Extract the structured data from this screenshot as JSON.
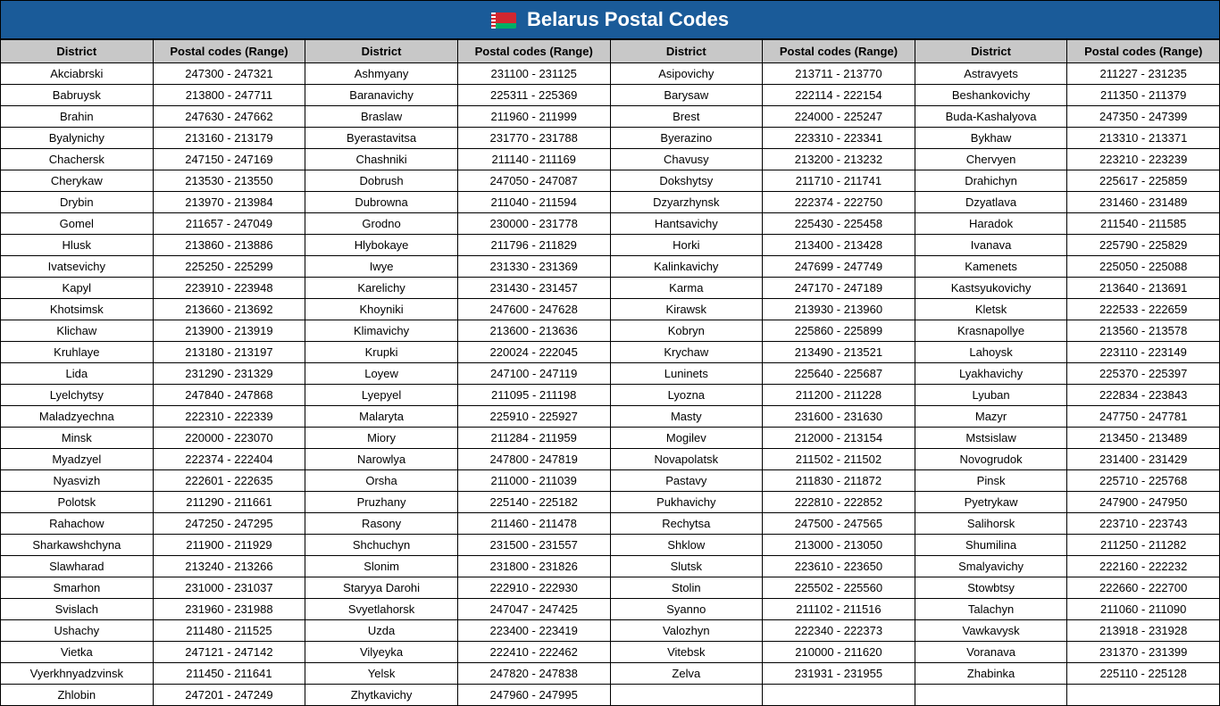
{
  "title": "Belarus Postal Codes",
  "colors": {
    "header_bg": "#1a5b99",
    "header_text": "#ffffff",
    "th_bg": "#c8c8c8",
    "border": "#000000",
    "row_bg": "#ffffff",
    "text": "#000000"
  },
  "typography": {
    "title_fontsize": 22,
    "title_weight": "bold",
    "th_fontsize": 13,
    "th_weight": "bold",
    "td_fontsize": 13,
    "font_family": "Arial"
  },
  "table": {
    "type": "table",
    "column_pairs": 4,
    "headers": [
      "District",
      "Postal codes (Range)"
    ],
    "col_widths_pct": [
      12.5,
      12.5,
      12.5,
      12.5,
      12.5,
      12.5,
      12.5,
      12.5
    ],
    "entries": [
      {
        "district": "Akciabrski",
        "range": "247300 - 247321"
      },
      {
        "district": "Ashmyany",
        "range": "231100 - 231125"
      },
      {
        "district": "Asipovichy",
        "range": "213711 - 213770"
      },
      {
        "district": "Astravyets",
        "range": "211227 - 231235"
      },
      {
        "district": "Babruysk",
        "range": "213800 - 247711"
      },
      {
        "district": "Baranavichy",
        "range": "225311 - 225369"
      },
      {
        "district": "Barysaw",
        "range": "222114 - 222154"
      },
      {
        "district": "Beshankovichy",
        "range": "211350 - 211379"
      },
      {
        "district": "Brahin",
        "range": "247630 - 247662"
      },
      {
        "district": "Braslaw",
        "range": "211960 - 211999"
      },
      {
        "district": "Brest",
        "range": "224000 - 225247"
      },
      {
        "district": "Buda-Kashalyova",
        "range": "247350 - 247399"
      },
      {
        "district": "Byalynichy",
        "range": "213160 - 213179"
      },
      {
        "district": "Byerastavitsa",
        "range": "231770 - 231788"
      },
      {
        "district": "Byerazino",
        "range": "223310 - 223341"
      },
      {
        "district": "Bykhaw",
        "range": "213310 - 213371"
      },
      {
        "district": "Chachersk",
        "range": "247150 - 247169"
      },
      {
        "district": "Chashniki",
        "range": "211140 - 211169"
      },
      {
        "district": "Chavusy",
        "range": "213200 - 213232"
      },
      {
        "district": "Chervyen",
        "range": "223210 - 223239"
      },
      {
        "district": "Cherykaw",
        "range": "213530 - 213550"
      },
      {
        "district": "Dobrush",
        "range": "247050 - 247087"
      },
      {
        "district": "Dokshytsy",
        "range": "211710 - 211741"
      },
      {
        "district": "Drahichyn",
        "range": "225617 - 225859"
      },
      {
        "district": "Drybin",
        "range": "213970 - 213984"
      },
      {
        "district": "Dubrowna",
        "range": "211040 - 211594"
      },
      {
        "district": "Dzyarzhynsk",
        "range": "222374 - 222750"
      },
      {
        "district": "Dzyatlava",
        "range": "231460 - 231489"
      },
      {
        "district": "Gomel",
        "range": "211657 - 247049"
      },
      {
        "district": "Grodno",
        "range": "230000 - 231778"
      },
      {
        "district": "Hantsavichy",
        "range": "225430 - 225458"
      },
      {
        "district": "Haradok",
        "range": "211540 - 211585"
      },
      {
        "district": "Hlusk",
        "range": "213860 - 213886"
      },
      {
        "district": "Hlybokaye",
        "range": "211796 - 211829"
      },
      {
        "district": "Horki",
        "range": "213400 - 213428"
      },
      {
        "district": "Ivanava",
        "range": "225790 - 225829"
      },
      {
        "district": "Ivatsevichy",
        "range": "225250 - 225299"
      },
      {
        "district": "Iwye",
        "range": "231330 - 231369"
      },
      {
        "district": "Kalinkavichy",
        "range": "247699 - 247749"
      },
      {
        "district": "Kamenets",
        "range": "225050 - 225088"
      },
      {
        "district": "Kapyl",
        "range": "223910 - 223948"
      },
      {
        "district": "Karelichy",
        "range": "231430 - 231457"
      },
      {
        "district": "Karma",
        "range": "247170 - 247189"
      },
      {
        "district": "Kastsyukovichy",
        "range": "213640 - 213691"
      },
      {
        "district": "Khotsimsk",
        "range": "213660 - 213692"
      },
      {
        "district": "Khoyniki",
        "range": "247600 - 247628"
      },
      {
        "district": "Kirawsk",
        "range": "213930 - 213960"
      },
      {
        "district": "Kletsk",
        "range": "222533 - 222659"
      },
      {
        "district": "Klichaw",
        "range": "213900 - 213919"
      },
      {
        "district": "Klimavichy",
        "range": "213600 - 213636"
      },
      {
        "district": "Kobryn",
        "range": "225860 - 225899"
      },
      {
        "district": "Krasnapollye",
        "range": "213560 - 213578"
      },
      {
        "district": "Kruhlaye",
        "range": "213180 - 213197"
      },
      {
        "district": "Krupki",
        "range": "220024 - 222045"
      },
      {
        "district": "Krychaw",
        "range": "213490 - 213521"
      },
      {
        "district": "Lahoysk",
        "range": "223110 - 223149"
      },
      {
        "district": "Lida",
        "range": "231290 - 231329"
      },
      {
        "district": "Loyew",
        "range": "247100 - 247119"
      },
      {
        "district": "Luninets",
        "range": "225640 - 225687"
      },
      {
        "district": "Lyakhavichy",
        "range": "225370 - 225397"
      },
      {
        "district": "Lyelchytsy",
        "range": "247840 - 247868"
      },
      {
        "district": "Lyepyel",
        "range": "211095 - 211198"
      },
      {
        "district": "Lyozna",
        "range": "211200 - 211228"
      },
      {
        "district": "Lyuban",
        "range": "222834 - 223843"
      },
      {
        "district": "Maladzyechna",
        "range": "222310 - 222339"
      },
      {
        "district": "Malaryta",
        "range": "225910 - 225927"
      },
      {
        "district": "Masty",
        "range": "231600 - 231630"
      },
      {
        "district": "Mazyr",
        "range": "247750 - 247781"
      },
      {
        "district": "Minsk",
        "range": "220000 - 223070"
      },
      {
        "district": "Miory",
        "range": "211284 - 211959"
      },
      {
        "district": "Mogilev",
        "range": "212000 - 213154"
      },
      {
        "district": "Mstsislaw",
        "range": "213450 - 213489"
      },
      {
        "district": "Myadzyel",
        "range": "222374 - 222404"
      },
      {
        "district": "Narowlya",
        "range": "247800 - 247819"
      },
      {
        "district": "Novapolatsk",
        "range": "211502 - 211502"
      },
      {
        "district": "Novogrudok",
        "range": "231400 - 231429"
      },
      {
        "district": "Nyasvizh",
        "range": "222601 - 222635"
      },
      {
        "district": "Orsha",
        "range": "211000 - 211039"
      },
      {
        "district": "Pastavy",
        "range": "211830 - 211872"
      },
      {
        "district": "Pinsk",
        "range": "225710 - 225768"
      },
      {
        "district": "Polotsk",
        "range": "211290 - 211661"
      },
      {
        "district": "Pruzhany",
        "range": "225140 - 225182"
      },
      {
        "district": "Pukhavichy",
        "range": "222810 - 222852"
      },
      {
        "district": "Pyetrykaw",
        "range": "247900 - 247950"
      },
      {
        "district": "Rahachow",
        "range": "247250 - 247295"
      },
      {
        "district": "Rasony",
        "range": "211460 - 211478"
      },
      {
        "district": "Rechytsa",
        "range": "247500 - 247565"
      },
      {
        "district": "Salihorsk",
        "range": "223710 - 223743"
      },
      {
        "district": "Sharkawshchyna",
        "range": "211900 - 211929"
      },
      {
        "district": "Shchuchyn",
        "range": "231500 - 231557"
      },
      {
        "district": "Shklow",
        "range": "213000 - 213050"
      },
      {
        "district": "Shumilina",
        "range": "211250 - 211282"
      },
      {
        "district": "Slawharad",
        "range": "213240 - 213266"
      },
      {
        "district": "Slonim",
        "range": "231800 - 231826"
      },
      {
        "district": "Slutsk",
        "range": "223610 - 223650"
      },
      {
        "district": "Smalyavichy",
        "range": "222160 - 222232"
      },
      {
        "district": "Smarhon",
        "range": "231000 - 231037"
      },
      {
        "district": "Staryya Darohi",
        "range": "222910 - 222930"
      },
      {
        "district": "Stolin",
        "range": "225502 - 225560"
      },
      {
        "district": "Stowbtsy",
        "range": "222660 - 222700"
      },
      {
        "district": "Svislach",
        "range": "231960 - 231988"
      },
      {
        "district": "Svyetlahorsk",
        "range": "247047 - 247425"
      },
      {
        "district": "Syanno",
        "range": "211102 - 211516"
      },
      {
        "district": "Talachyn",
        "range": "211060 - 211090"
      },
      {
        "district": "Ushachy",
        "range": "211480 - 211525"
      },
      {
        "district": "Uzda",
        "range": "223400 - 223419"
      },
      {
        "district": "Valozhyn",
        "range": "222340 - 222373"
      },
      {
        "district": "Vawkavysk",
        "range": "213918 - 231928"
      },
      {
        "district": "Vietka",
        "range": "247121 - 247142"
      },
      {
        "district": "Vilyeyka",
        "range": "222410 - 222462"
      },
      {
        "district": "Vitebsk",
        "range": "210000 - 211620"
      },
      {
        "district": "Voranava",
        "range": "231370 - 231399"
      },
      {
        "district": "Vyerkhnyadzvinsk",
        "range": "211450 - 211641"
      },
      {
        "district": "Yelsk",
        "range": "247820 - 247838"
      },
      {
        "district": "Zelva",
        "range": "231931 - 231955"
      },
      {
        "district": "Zhabinka",
        "range": "225110 - 225128"
      },
      {
        "district": "Zhlobin",
        "range": "247201 - 247249"
      },
      {
        "district": "Zhytkavichy",
        "range": "247960 - 247995"
      }
    ]
  }
}
